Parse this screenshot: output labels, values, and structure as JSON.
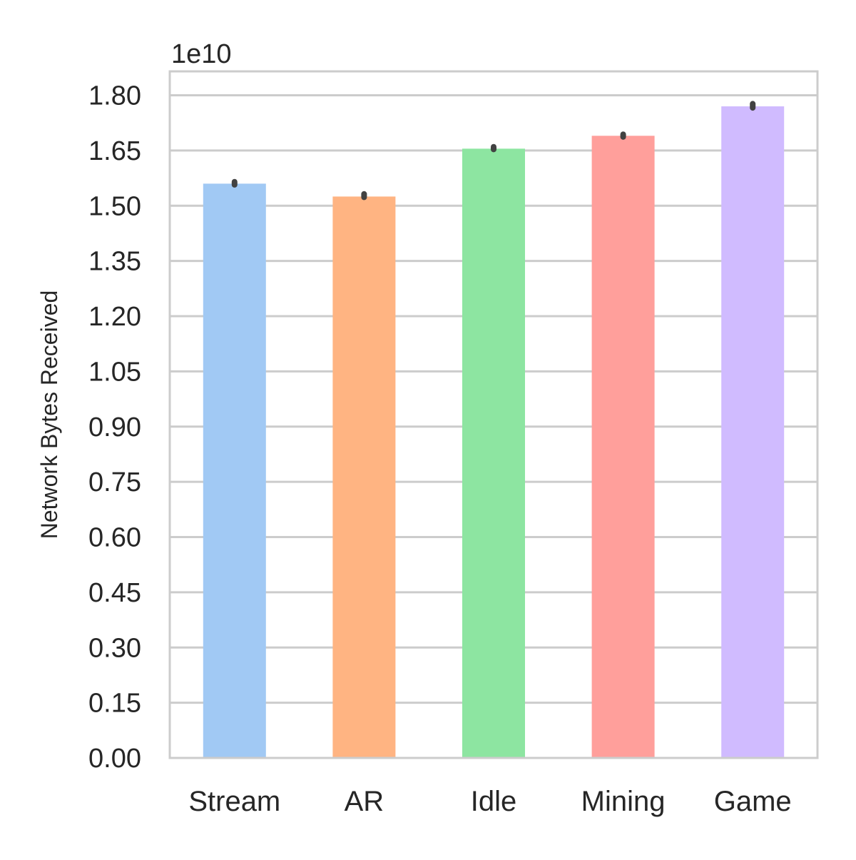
{
  "chart_data": {
    "type": "bar",
    "title": "",
    "xlabel": "",
    "ylabel": "Network Bytes Received",
    "y_offset_label": "1e10",
    "scale_factor": 10000000000,
    "categories": [
      "Stream",
      "AR",
      "Idle",
      "Mining",
      "Game"
    ],
    "values": [
      15600000000,
      15250000000,
      16550000000,
      16900000000,
      17700000000
    ],
    "error_bars": [
      [
        15570000000,
        15650000000
      ],
      [
        15230000000,
        15320000000
      ],
      [
        16530000000,
        16600000000
      ],
      [
        16870000000,
        16940000000
      ],
      [
        17660000000,
        17770000000
      ]
    ],
    "colors": [
      "#a1c9f4",
      "#ffb482",
      "#8de5a1",
      "#ff9f9b",
      "#d0bbff"
    ],
    "error_bar_color": "#424242",
    "ylim": [
      0,
      18650000000
    ],
    "yticks": [
      "0.00",
      "0.15",
      "0.30",
      "0.45",
      "0.60",
      "0.75",
      "0.90",
      "1.05",
      "1.20",
      "1.35",
      "1.50",
      "1.65",
      "1.80"
    ],
    "ytick_values": [
      0,
      0.15,
      0.3,
      0.45,
      0.6,
      0.75,
      0.9,
      1.05,
      1.2,
      1.35,
      1.5,
      1.65,
      1.8
    ],
    "grid": true,
    "grid_axis": "y",
    "legend": "none"
  }
}
